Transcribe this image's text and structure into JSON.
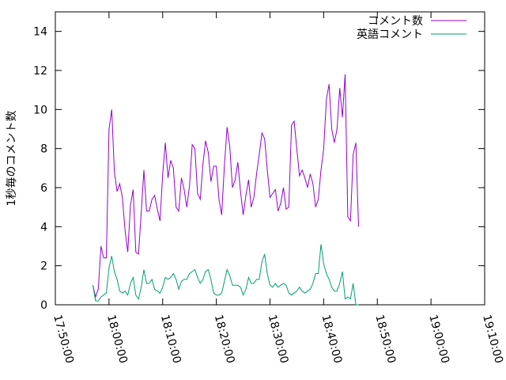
{
  "chart_data": {
    "type": "line",
    "title": "",
    "xlabel": "",
    "ylabel": "1秒毎のコメント数",
    "xlim": [
      "17:50:00",
      "19:10:00"
    ],
    "ylim": [
      0,
      15
    ],
    "x_ticks": [
      "17:50:00",
      "18:00:00",
      "18:10:00",
      "18:20:00",
      "18:30:00",
      "18:40:00",
      "18:50:00",
      "19:00:00",
      "19:10:00"
    ],
    "y_ticks": [
      0,
      2,
      4,
      6,
      8,
      10,
      12,
      14
    ],
    "grid": false,
    "legend_position": "top-right",
    "series": [
      {
        "name": "コメント数",
        "color": "#9400d3",
        "points": [
          [
            "17:57:00",
            1.0
          ],
          [
            "17:57:30",
            0.4
          ],
          [
            "17:58:00",
            0.8
          ],
          [
            "17:58:30",
            3.0
          ],
          [
            "17:59:00",
            2.4
          ],
          [
            "17:59:30",
            2.4
          ],
          [
            "18:00:00",
            9.0
          ],
          [
            "18:00:30",
            10.0
          ],
          [
            "18:01:00",
            6.8
          ],
          [
            "18:01:30",
            5.8
          ],
          [
            "18:02:00",
            6.2
          ],
          [
            "18:02:30",
            5.5
          ],
          [
            "18:03:00",
            3.8
          ],
          [
            "18:03:30",
            2.7
          ],
          [
            "18:04:00",
            5.1
          ],
          [
            "18:04:30",
            5.9
          ],
          [
            "18:05:00",
            2.7
          ],
          [
            "18:05:30",
            2.6
          ],
          [
            "18:06:00",
            4.7
          ],
          [
            "18:06:30",
            6.9
          ],
          [
            "18:07:00",
            4.8
          ],
          [
            "18:07:30",
            4.8
          ],
          [
            "18:08:00",
            5.4
          ],
          [
            "18:08:30",
            5.6
          ],
          [
            "18:09:00",
            4.9
          ],
          [
            "18:09:30",
            4.3
          ],
          [
            "18:10:00",
            6.7
          ],
          [
            "18:10:30",
            8.3
          ],
          [
            "18:11:00",
            6.5
          ],
          [
            "18:11:30",
            7.4
          ],
          [
            "18:12:00",
            7.0
          ],
          [
            "18:12:30",
            5.0
          ],
          [
            "18:13:00",
            4.8
          ],
          [
            "18:13:30",
            6.5
          ],
          [
            "18:14:00",
            5.9
          ],
          [
            "18:14:30",
            5.0
          ],
          [
            "18:15:00",
            6.1
          ],
          [
            "18:15:30",
            8.2
          ],
          [
            "18:16:00",
            8.0
          ],
          [
            "18:16:30",
            5.7
          ],
          [
            "18:17:00",
            5.4
          ],
          [
            "18:17:30",
            7.2
          ],
          [
            "18:18:00",
            8.4
          ],
          [
            "18:18:30",
            7.8
          ],
          [
            "18:19:00",
            6.3
          ],
          [
            "18:19:30",
            7.1
          ],
          [
            "18:20:00",
            7.1
          ],
          [
            "18:20:30",
            5.4
          ],
          [
            "18:21:00",
            4.6
          ],
          [
            "18:21:30",
            7.1
          ],
          [
            "18:22:00",
            9.1
          ],
          [
            "18:22:30",
            8.1
          ],
          [
            "18:23:00",
            6.0
          ],
          [
            "18:23:30",
            6.4
          ],
          [
            "18:24:00",
            7.3
          ],
          [
            "18:24:30",
            5.8
          ],
          [
            "18:25:00",
            4.6
          ],
          [
            "18:25:30",
            5.6
          ],
          [
            "18:26:00",
            6.4
          ],
          [
            "18:26:30",
            5.0
          ],
          [
            "18:27:00",
            5.5
          ],
          [
            "18:27:30",
            6.7
          ],
          [
            "18:28:00",
            7.7
          ],
          [
            "18:28:30",
            8.8
          ],
          [
            "18:29:00",
            8.5
          ],
          [
            "18:29:30",
            6.9
          ],
          [
            "18:30:00",
            5.5
          ],
          [
            "18:30:30",
            5.7
          ],
          [
            "18:31:00",
            5.9
          ],
          [
            "18:31:30",
            4.8
          ],
          [
            "18:32:00",
            5.2
          ],
          [
            "18:32:30",
            6.0
          ],
          [
            "18:33:00",
            4.9
          ],
          [
            "18:33:30",
            5.0
          ],
          [
            "18:34:00",
            9.2
          ],
          [
            "18:34:30",
            9.4
          ],
          [
            "18:35:00",
            8.0
          ],
          [
            "18:35:30",
            6.6
          ],
          [
            "18:36:00",
            6.9
          ],
          [
            "18:36:30",
            6.5
          ],
          [
            "18:37:00",
            6.0
          ],
          [
            "18:37:30",
            6.7
          ],
          [
            "18:38:00",
            6.2
          ],
          [
            "18:38:30",
            5.0
          ],
          [
            "18:39:00",
            5.4
          ],
          [
            "18:39:30",
            6.9
          ],
          [
            "18:40:00",
            8.0
          ],
          [
            "18:40:30",
            10.5
          ],
          [
            "18:41:00",
            11.3
          ],
          [
            "18:41:30",
            9.0
          ],
          [
            "18:42:00",
            8.3
          ],
          [
            "18:42:30",
            9.0
          ],
          [
            "18:43:00",
            11.1
          ],
          [
            "18:43:30",
            9.6
          ],
          [
            "18:44:00",
            11.8
          ],
          [
            "18:44:30",
            4.5
          ],
          [
            "18:45:00",
            4.3
          ],
          [
            "18:45:30",
            7.7
          ],
          [
            "18:46:00",
            8.3
          ],
          [
            "18:46:30",
            4.0
          ]
        ]
      },
      {
        "name": "英語コメント",
        "color": "#009e73",
        "points": [
          [
            "17:57:00",
            1.0
          ],
          [
            "17:57:30",
            0.2
          ],
          [
            "17:58:00",
            0.2
          ],
          [
            "17:58:30",
            0.4
          ],
          [
            "17:59:00",
            0.5
          ],
          [
            "17:59:30",
            0.6
          ],
          [
            "18:00:00",
            1.9
          ],
          [
            "18:00:30",
            2.5
          ],
          [
            "18:01:00",
            1.7
          ],
          [
            "18:01:30",
            1.3
          ],
          [
            "18:02:00",
            0.7
          ],
          [
            "18:02:30",
            0.6
          ],
          [
            "18:03:00",
            0.7
          ],
          [
            "18:03:30",
            0.5
          ],
          [
            "18:04:00",
            1.1
          ],
          [
            "18:04:30",
            1.4
          ],
          [
            "18:05:00",
            0.5
          ],
          [
            "18:05:30",
            0.3
          ],
          [
            "18:06:00",
            0.9
          ],
          [
            "18:06:30",
            1.8
          ],
          [
            "18:07:00",
            1.1
          ],
          [
            "18:07:30",
            1.1
          ],
          [
            "18:08:00",
            1.3
          ],
          [
            "18:08:30",
            0.8
          ],
          [
            "18:09:00",
            0.7
          ],
          [
            "18:09:30",
            0.6
          ],
          [
            "18:10:00",
            0.9
          ],
          [
            "18:10:30",
            1.4
          ],
          [
            "18:11:00",
            1.3
          ],
          [
            "18:11:30",
            1.4
          ],
          [
            "18:12:00",
            1.6
          ],
          [
            "18:12:30",
            1.3
          ],
          [
            "18:13:00",
            0.8
          ],
          [
            "18:13:30",
            1.2
          ],
          [
            "18:14:00",
            1.3
          ],
          [
            "18:14:30",
            1.3
          ],
          [
            "18:15:00",
            1.6
          ],
          [
            "18:15:30",
            1.7
          ],
          [
            "18:16:00",
            1.8
          ],
          [
            "18:16:30",
            1.4
          ],
          [
            "18:17:00",
            1.1
          ],
          [
            "18:17:30",
            1.3
          ],
          [
            "18:18:00",
            1.7
          ],
          [
            "18:18:30",
            1.8
          ],
          [
            "18:19:00",
            1.3
          ],
          [
            "18:19:30",
            0.6
          ],
          [
            "18:20:00",
            0.5
          ],
          [
            "18:20:30",
            0.5
          ],
          [
            "18:21:00",
            0.6
          ],
          [
            "18:21:30",
            1.2
          ],
          [
            "18:22:00",
            1.8
          ],
          [
            "18:22:30",
            1.5
          ],
          [
            "18:23:00",
            1.0
          ],
          [
            "18:23:30",
            1.0
          ],
          [
            "18:24:00",
            1.0
          ],
          [
            "18:24:30",
            0.9
          ],
          [
            "18:25:00",
            0.5
          ],
          [
            "18:25:30",
            0.8
          ],
          [
            "18:26:00",
            1.4
          ],
          [
            "18:26:30",
            1.1
          ],
          [
            "18:27:00",
            1.1
          ],
          [
            "18:27:30",
            1.3
          ],
          [
            "18:28:00",
            1.3
          ],
          [
            "18:28:30",
            2.2
          ],
          [
            "18:29:00",
            2.6
          ],
          [
            "18:29:30",
            1.6
          ],
          [
            "18:30:00",
            1.0
          ],
          [
            "18:30:30",
            0.9
          ],
          [
            "18:31:00",
            1.1
          ],
          [
            "18:31:30",
            0.9
          ],
          [
            "18:32:00",
            1.0
          ],
          [
            "18:32:30",
            1.1
          ],
          [
            "18:33:00",
            1.0
          ],
          [
            "18:33:30",
            0.6
          ],
          [
            "18:34:00",
            0.5
          ],
          [
            "18:34:30",
            0.6
          ],
          [
            "18:35:00",
            0.7
          ],
          [
            "18:35:30",
            0.9
          ],
          [
            "18:36:00",
            0.7
          ],
          [
            "18:36:30",
            0.6
          ],
          [
            "18:37:00",
            0.7
          ],
          [
            "18:37:30",
            0.8
          ],
          [
            "18:38:00",
            1.1
          ],
          [
            "18:38:30",
            1.6
          ],
          [
            "18:39:00",
            1.6
          ],
          [
            "18:39:30",
            3.1
          ],
          [
            "18:40:00",
            2.1
          ],
          [
            "18:40:30",
            1.6
          ],
          [
            "18:41:00",
            1.3
          ],
          [
            "18:41:30",
            0.9
          ],
          [
            "18:42:00",
            0.7
          ],
          [
            "18:42:30",
            0.7
          ],
          [
            "18:43:00",
            1.1
          ],
          [
            "18:43:30",
            1.7
          ],
          [
            "18:44:00",
            0.3
          ],
          [
            "18:44:30",
            0.4
          ],
          [
            "18:45:00",
            0.3
          ],
          [
            "18:45:30",
            1.1
          ],
          [
            "18:46:00",
            0.0
          ],
          [
            "18:46:30",
            0.0
          ]
        ]
      }
    ]
  }
}
